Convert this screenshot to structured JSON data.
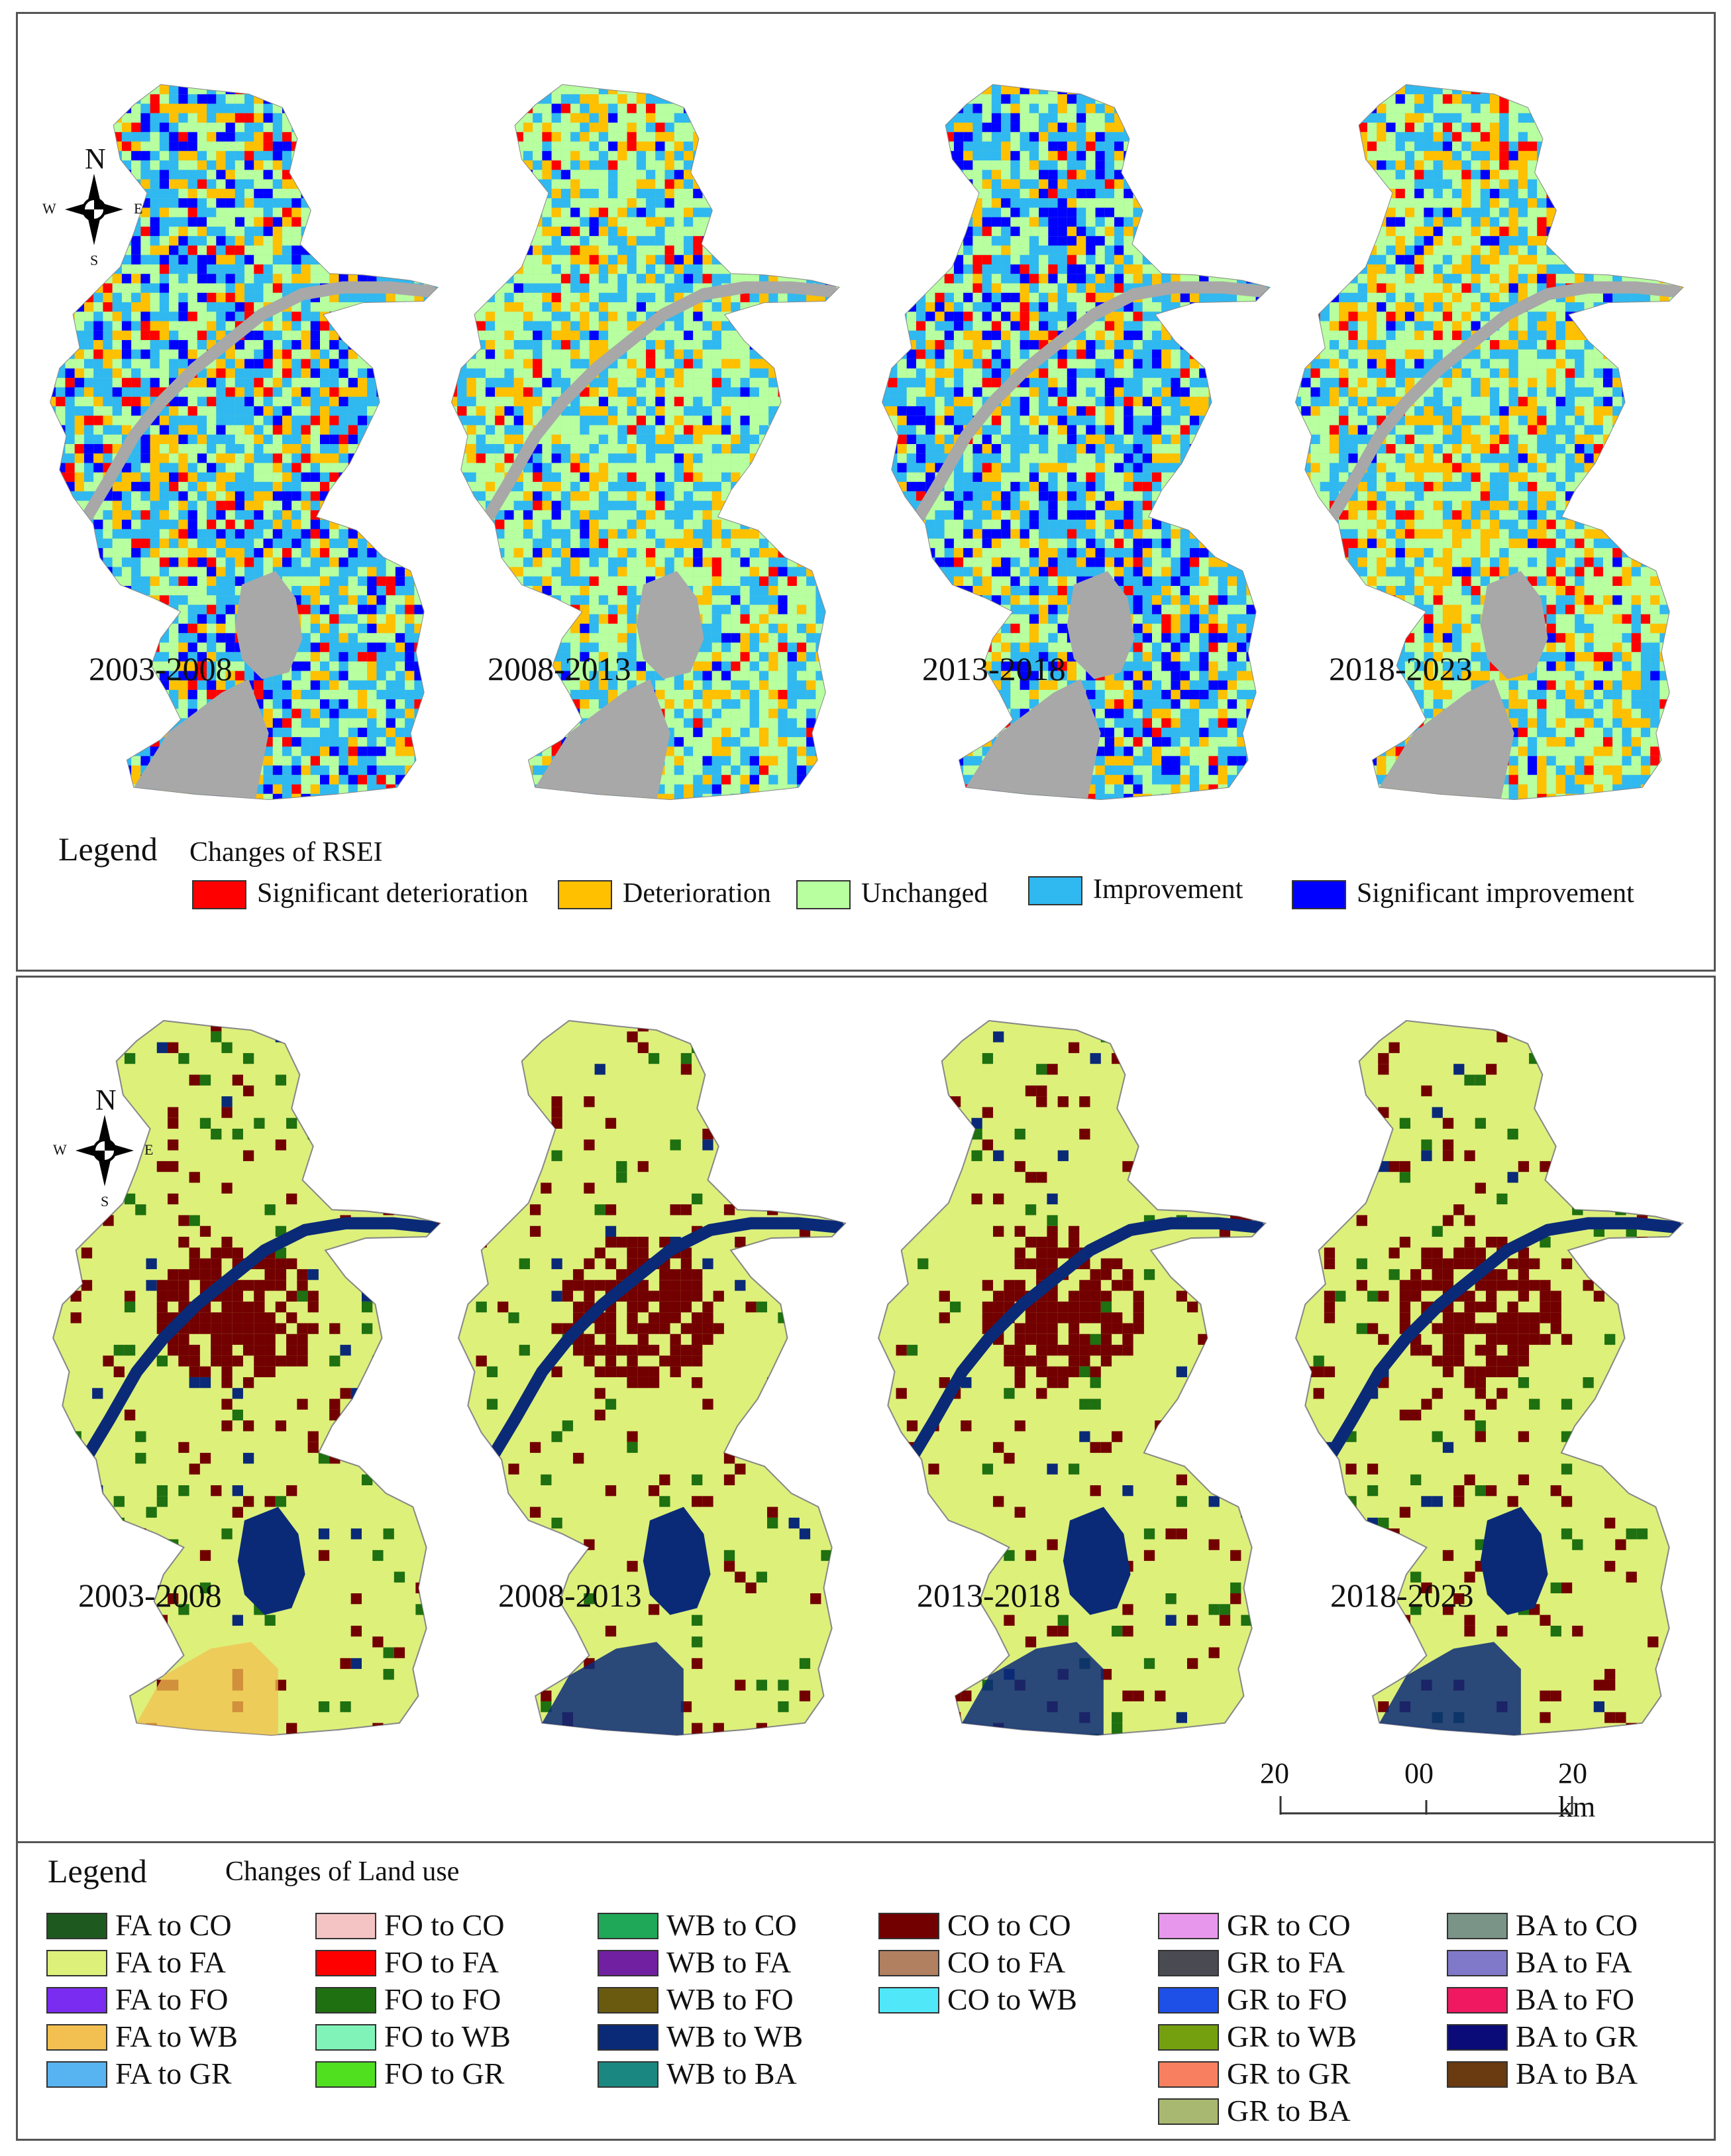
{
  "top": {
    "periods": [
      "2003-2008",
      "2008-2013",
      "2013-2018",
      "2018-2023"
    ],
    "legend_title": "Legend",
    "legend_subtitle": "Changes of RSEI",
    "classes": [
      {
        "label": "Significant deterioration",
        "color": "#ff0000"
      },
      {
        "label": "Deterioration",
        "color": "#ffc000"
      },
      {
        "label": "Unchanged",
        "color": "#b8ffa0"
      },
      {
        "label": "Improvement",
        "color": "#30b8f0"
      },
      {
        "label": "Significant improvement",
        "color": "#0000ff"
      }
    ],
    "map_palette": {
      "water_background": "#a8a8a8"
    }
  },
  "bottom": {
    "periods": [
      "2003-2008",
      "2008-2013",
      "2013-2018",
      "2018-2023"
    ],
    "legend_title": "Legend",
    "legend_subtitle": "Changes of Land use",
    "scale": {
      "left": "20",
      "mid": "00",
      "right": "20 km"
    },
    "columns": [
      [
        {
          "label": "FA to CO",
          "color": "#1e5a20"
        },
        {
          "label": "FA to FA",
          "color": "#ddf07a"
        },
        {
          "label": "FA to FO",
          "color": "#7a2cf0"
        },
        {
          "label": "FA to WB",
          "color": "#f2c050"
        },
        {
          "label": "FA to GR",
          "color": "#58b4f0"
        }
      ],
      [
        {
          "label": "FO to CO",
          "color": "#f4c4c4"
        },
        {
          "label": "FO to FA",
          "color": "#ff0000"
        },
        {
          "label": "FO to FO",
          "color": "#1e7010"
        },
        {
          "label": "FO to WB",
          "color": "#80f4b8"
        },
        {
          "label": "FO to GR",
          "color": "#50e020"
        }
      ],
      [
        {
          "label": "WB to CO",
          "color": "#1ea858"
        },
        {
          "label": "WB to FA",
          "color": "#7020a0"
        },
        {
          "label": "WB to FO",
          "color": "#6a5a10"
        },
        {
          "label": "WB to WB",
          "color": "#0a2a78"
        },
        {
          "label": "WB to BA",
          "color": "#1a8880"
        }
      ],
      [
        {
          "label": "CO to CO",
          "color": "#720000"
        },
        {
          "label": "CO to FA",
          "color": "#b08060"
        },
        {
          "label": "CO to WB",
          "color": "#50e8f8"
        }
      ],
      [
        {
          "label": "GR to CO",
          "color": "#e898ec"
        },
        {
          "label": "GR to FA",
          "color": "#4a4a52"
        },
        {
          "label": "GR to FO",
          "color": "#1e50e8"
        },
        {
          "label": "GR to WB",
          "color": "#74a010"
        },
        {
          "label": "GR to GR",
          "color": "#f88060"
        },
        {
          "label": "GR to BA",
          "color": "#a8b870"
        }
      ],
      [
        {
          "label": "BA to CO",
          "color": "#7a9488"
        },
        {
          "label": "BA to FA",
          "color": "#8078c8"
        },
        {
          "label": "BA to FO",
          "color": "#f01860"
        },
        {
          "label": "BA to GR",
          "color": "#0a0a78"
        },
        {
          "label": "BA to BA",
          "color": "#6a3a10"
        }
      ]
    ]
  },
  "compass": {
    "n": "N",
    "s": "S",
    "e": "E",
    "w": "W"
  }
}
